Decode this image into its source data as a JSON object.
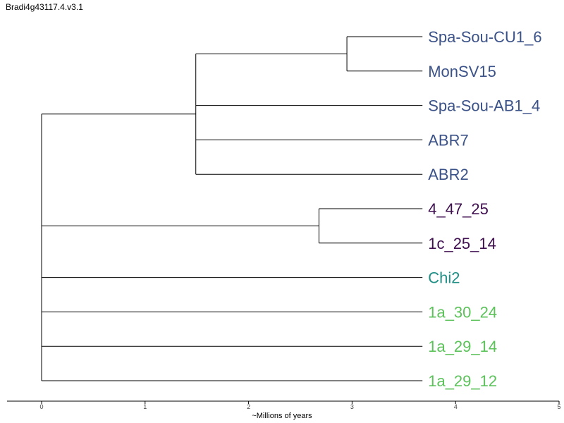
{
  "title": "Bradi4g43117.4.v3.1",
  "axis": {
    "label": "~Millions of years",
    "ticks": [
      "0",
      "1",
      "2",
      "3",
      "4",
      "5"
    ],
    "range": [
      0,
      5
    ]
  },
  "colors": {
    "blue": "#3b5288",
    "purple": "#3f0f4f",
    "teal": "#1f8f86",
    "green": "#5cc25a",
    "branch": "#000000"
  },
  "tree": {
    "leaves": [
      {
        "id": "l1",
        "label": "Spa-Sou-CU1_6",
        "color": "blue"
      },
      {
        "id": "l2",
        "label": "MonSV15",
        "color": "blue"
      },
      {
        "id": "l3",
        "label": "Spa-Sou-AB1_4",
        "color": "blue"
      },
      {
        "id": "l4",
        "label": "ABR7",
        "color": "blue"
      },
      {
        "id": "l5",
        "label": "ABR2",
        "color": "blue"
      },
      {
        "id": "l6",
        "label": "4_47_25",
        "color": "purple"
      },
      {
        "id": "l7",
        "label": "1c_25_14",
        "color": "purple"
      },
      {
        "id": "l8",
        "label": "Chi2",
        "color": "teal"
      },
      {
        "id": "l9",
        "label": "1a_30_24",
        "color": "green"
      },
      {
        "id": "l10",
        "label": "1a_29_14",
        "color": "green"
      },
      {
        "id": "l11",
        "label": "1a_29_12",
        "color": "green"
      }
    ],
    "nodes": [
      {
        "id": "n1",
        "x": 2.95,
        "children": [
          "l1",
          "l2"
        ]
      },
      {
        "id": "n2",
        "x": 1.49,
        "children": [
          "n1",
          "l3",
          "l4",
          "l5"
        ]
      },
      {
        "id": "n3",
        "x": 2.68,
        "children": [
          "l6",
          "l7"
        ]
      },
      {
        "id": "root",
        "x": 0.0,
        "children": [
          "n2",
          "n3",
          "l8",
          "l9",
          "l10",
          "l11"
        ]
      }
    ],
    "leaf_x": 3.68
  }
}
